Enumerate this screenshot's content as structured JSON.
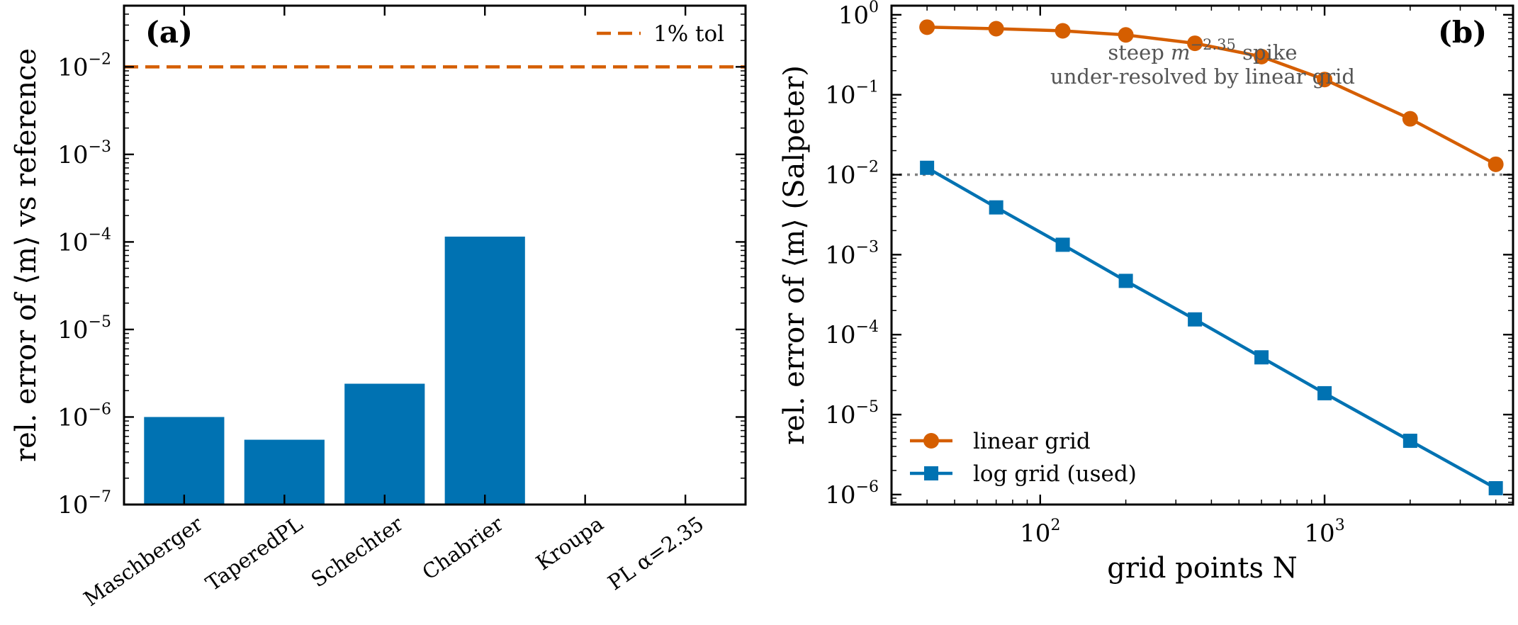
{
  "colors": {
    "bar": "#0072b2",
    "linear": "#d55e00",
    "log": "#0072b2",
    "tol": "#d55e00",
    "ref": "#808080"
  },
  "chart_data": [
    {
      "type": "bar",
      "panel_label": "(a)",
      "categories": [
        "Maschberger",
        "TaperedPL",
        "Schechter",
        "Chabrier",
        "Kroupa",
        "PL α=2.35"
      ],
      "values": [
        1e-06,
        5.5e-07,
        2.4e-06,
        0.000115,
        null,
        null
      ],
      "ylabel": "rel. error of ⟨m⟩ vs reference",
      "yscale": "log",
      "ylim": [
        1e-07,
        0.05
      ],
      "yticks": [
        {
          "base": "10",
          "exp": "−7"
        },
        {
          "base": "10",
          "exp": "−6"
        },
        {
          "base": "10",
          "exp": "−5"
        },
        {
          "base": "10",
          "exp": "−4"
        },
        {
          "base": "10",
          "exp": "−3"
        },
        {
          "base": "10",
          "exp": "−2"
        }
      ],
      "hline": {
        "y": 0.01,
        "label": "1% tol",
        "style": "dashed"
      },
      "legend_position": "top-right"
    },
    {
      "type": "line",
      "panel_label": "(b)",
      "xlabel": "grid points N",
      "ylabel": "rel. error of ⟨m⟩ (Salpeter)",
      "xscale": "log",
      "yscale": "log",
      "xlim": [
        30,
        4600
      ],
      "ylim": [
        7.5e-07,
        1.3
      ],
      "xticks": [
        {
          "base": "10",
          "exp": "2"
        },
        {
          "base": "10",
          "exp": "3"
        }
      ],
      "yticks": [
        {
          "base": "10",
          "exp": "−6"
        },
        {
          "base": "10",
          "exp": "−5"
        },
        {
          "base": "10",
          "exp": "−4"
        },
        {
          "base": "10",
          "exp": "−3"
        },
        {
          "base": "10",
          "exp": "−2"
        },
        {
          "base": "10",
          "exp": "−1"
        },
        {
          "base": "10",
          "exp": "0"
        }
      ],
      "x": [
        40,
        70,
        120,
        200,
        350,
        600,
        1000,
        2000,
        4000
      ],
      "series": [
        {
          "name": "linear grid",
          "marker": "circle",
          "values": [
            0.7,
            0.67,
            0.63,
            0.56,
            0.44,
            0.3,
            0.155,
            0.05,
            0.0135
          ]
        },
        {
          "name": "log grid (used)",
          "marker": "square",
          "values": [
            0.0122,
            0.0039,
            0.00133,
            0.00047,
            0.000155,
            5.2e-05,
            1.85e-05,
            4.7e-06,
            1.2e-06
          ]
        }
      ],
      "hline": {
        "y": 0.01,
        "style": "dotted"
      },
      "annotation": {
        "line1_prefix": "steep ",
        "line1_var": "m",
        "line1_exp": "−2.35",
        "line1_suffix": " spike",
        "line2": "under-resolved by linear grid"
      },
      "legend_position": "bottom-left"
    }
  ]
}
